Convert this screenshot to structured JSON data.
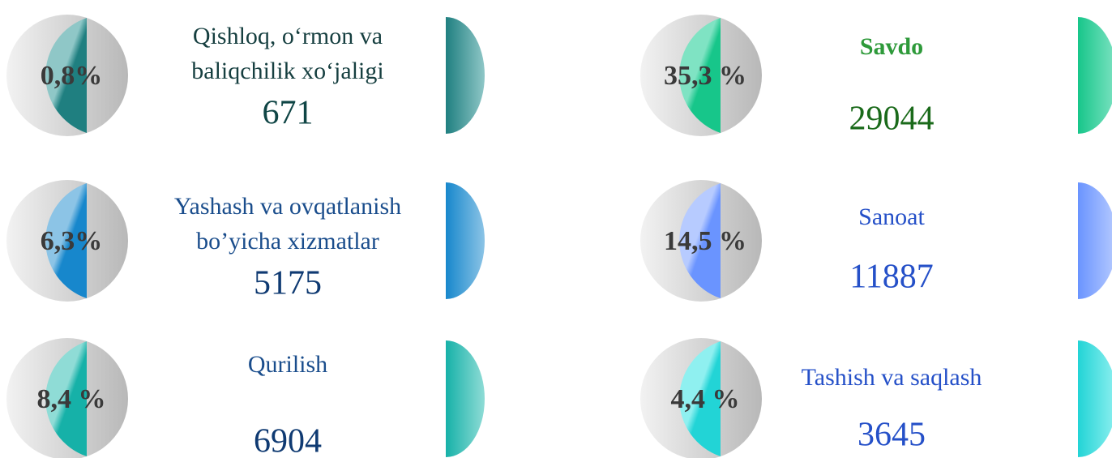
{
  "items": [
    {
      "percent": "0,8%",
      "name": [
        "Qishloq, o‘rmon va",
        "baliqchilik xo‘jaligi"
      ],
      "count": "671"
    },
    {
      "percent": "6,3%",
      "name": [
        "Yashash va ovqatlanish",
        "bo’yicha xizmatlar"
      ],
      "count": "5175"
    },
    {
      "percent": "8,4 %",
      "name": [
        "Qurilish"
      ],
      "count": "6904"
    },
    {
      "percent": "35,3 %",
      "name": [
        "Savdo"
      ],
      "count": "29044"
    },
    {
      "percent": "14,5 %",
      "name": [
        "Sanoat"
      ],
      "count": "11887"
    },
    {
      "percent": "4,4 %",
      "name": [
        "Tashish va saqlash"
      ],
      "count": "3645"
    }
  ]
}
